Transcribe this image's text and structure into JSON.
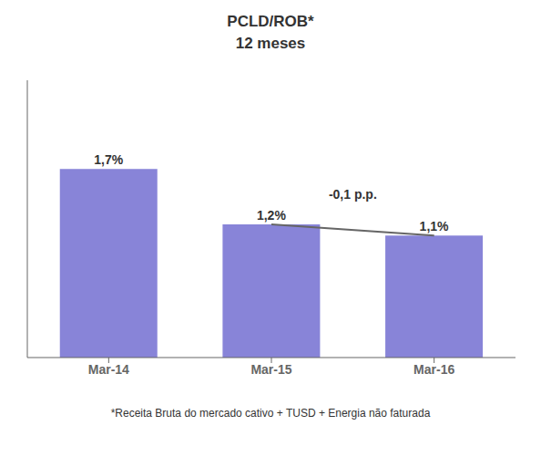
{
  "chart_data": {
    "type": "bar",
    "title": "PCLD/ROB*",
    "subtitle": "12 meses",
    "categories": [
      "Mar-14",
      "Mar-15",
      "Mar-16"
    ],
    "values": [
      1.7,
      1.2,
      1.1
    ],
    "value_labels": [
      "1,7%",
      "1,2%",
      "1,1%"
    ],
    "data_labels": true,
    "color": "#8884d8",
    "ylim": [
      0,
      2.5
    ],
    "tick_labels": "x",
    "annotations": [
      "-0,1 p.p."
    ],
    "footnote": "*Receita Bruta do mercado cativo + TUSD + Energia não faturada"
  }
}
